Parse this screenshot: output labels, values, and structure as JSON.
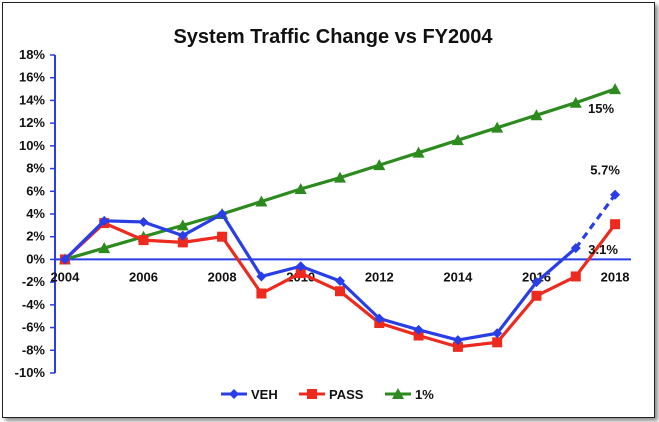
{
  "chart_data": {
    "type": "line",
    "title": "System Traffic Change vs FY2004",
    "xlabel": "",
    "ylabel": "",
    "x": [
      2004,
      2005,
      2006,
      2007,
      2008,
      2009,
      2010,
      2011,
      2012,
      2013,
      2014,
      2015,
      2016,
      2017,
      2018
    ],
    "x_tick_labels": [
      "2004",
      "2006",
      "2008",
      "2010",
      "2012",
      "2014",
      "2016",
      "2018"
    ],
    "y_tick_labels": [
      "18%",
      "16%",
      "14%",
      "12%",
      "10%",
      "8%",
      "6%",
      "4%",
      "2%",
      "0%",
      "-2%",
      "-4%",
      "-6%",
      "-8%",
      "-10%"
    ],
    "ylim": [
      -10,
      18
    ],
    "grid": false,
    "legend_position": "bottom",
    "series": [
      {
        "name": "VEH",
        "color": "#2a3ee8",
        "marker": "diamond",
        "values": [
          0,
          3.4,
          3.3,
          2.1,
          4.0,
          -1.5,
          -0.6,
          -1.9,
          -5.2,
          -6.2,
          -7.1,
          -6.5,
          -2.0,
          1.0,
          5.7
        ],
        "dashed_from_index": 13
      },
      {
        "name": "PASS",
        "color": "#ee2a1f",
        "marker": "square",
        "values": [
          0,
          3.2,
          1.7,
          1.5,
          2.0,
          -3.0,
          -1.2,
          -2.8,
          -5.6,
          -6.7,
          -7.7,
          -7.3,
          -3.2,
          -1.5,
          3.1
        ]
      },
      {
        "name": "1%",
        "color": "#2c8a1e",
        "marker": "triangle",
        "values": [
          0,
          1.0,
          2.0,
          3.0,
          4.0,
          5.1,
          6.2,
          7.2,
          8.3,
          9.4,
          10.5,
          11.6,
          12.7,
          13.8,
          15.0
        ]
      }
    ],
    "annotations": [
      {
        "text": "15%",
        "series": "1%",
        "x": 2018
      },
      {
        "text": "5.7%",
        "series": "VEH",
        "x": 2018
      },
      {
        "text": "3.1%",
        "series": "PASS",
        "x": 2018
      }
    ]
  }
}
